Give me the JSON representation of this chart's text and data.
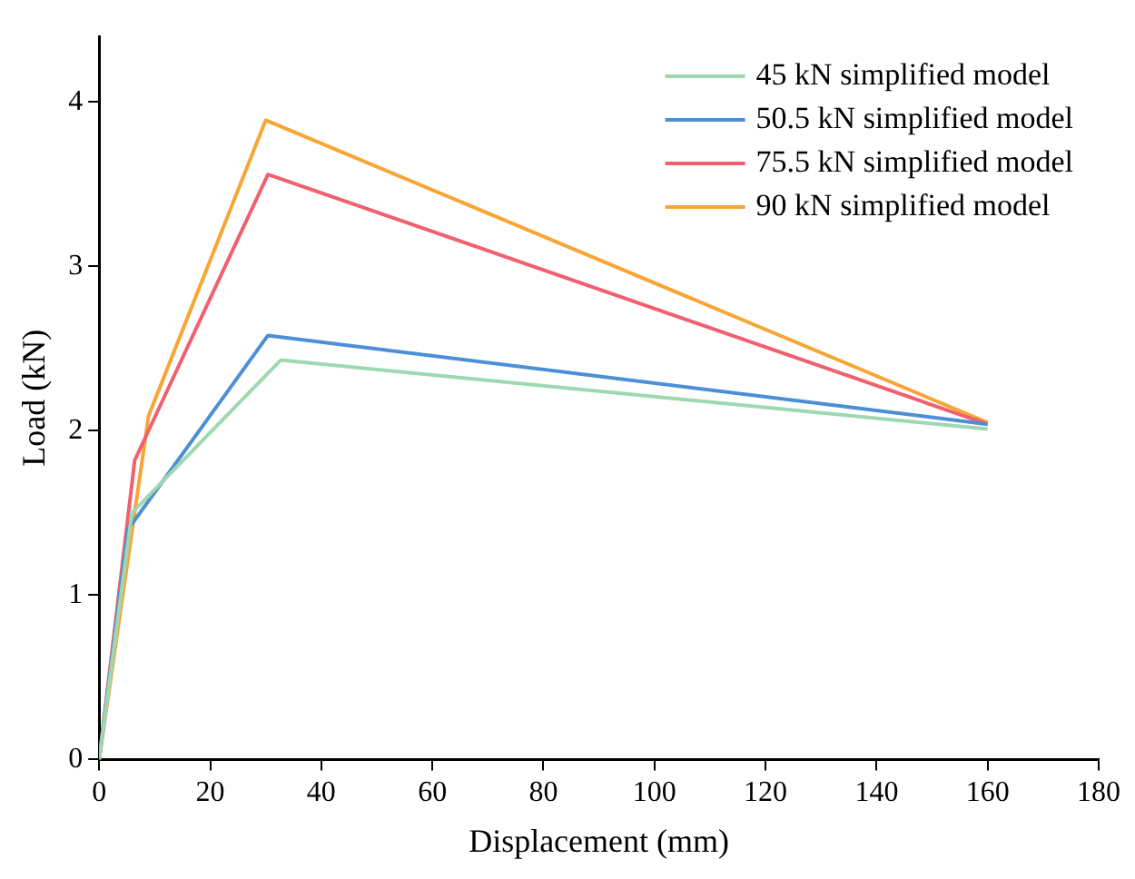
{
  "chart_data": {
    "type": "line",
    "xlabel": "Displacement (mm)",
    "ylabel": "Load (kN)",
    "xlim": [
      0,
      180
    ],
    "xticks": [
      0,
      20,
      40,
      60,
      80,
      100,
      120,
      140,
      160,
      180
    ],
    "ylim": [
      0,
      4.4
    ],
    "yticks": [
      0,
      1,
      2,
      3,
      4
    ],
    "grid": false,
    "legend": "top right",
    "marker": "none",
    "line_style": "solid",
    "series": [
      {
        "name": "45 kN simplified model",
        "color": "#9ed8b0",
        "x": [
          0,
          5.9,
          32.7,
          160
        ],
        "values": [
          0,
          1.5,
          2.43,
          2.01
        ]
      },
      {
        "name": "50.5 kN simplified model",
        "color": "#4d8fd6",
        "x": [
          0,
          5.2,
          30.4,
          160
        ],
        "values": [
          0,
          1.4,
          2.58,
          2.04
        ]
      },
      {
        "name": "75.5 kN simplified model",
        "color": "#f0606e",
        "x": [
          0,
          6.4,
          30.4,
          160
        ],
        "values": [
          0,
          1.82,
          3.56,
          2.04
        ]
      },
      {
        "name": "90 kN simplified model",
        "color": "#f8a535",
        "x": [
          0,
          8.9,
          30,
          160
        ],
        "values": [
          0,
          2.09,
          3.89,
          2.05
        ]
      }
    ]
  }
}
